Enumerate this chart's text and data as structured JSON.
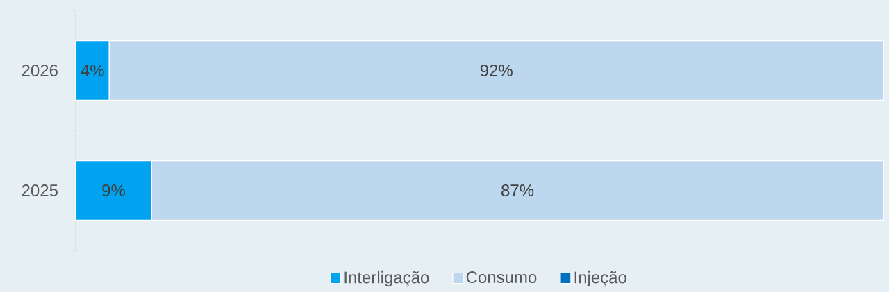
{
  "chart_data": {
    "type": "bar",
    "orientation": "horizontal",
    "stacked": true,
    "categories": [
      "2026",
      "2025"
    ],
    "series": [
      {
        "name": "Interligação",
        "color": "#00a3f0",
        "values": [
          4,
          9
        ],
        "value_labels": [
          "4%",
          "9%"
        ]
      },
      {
        "name": "Consumo",
        "color": "#bdd7ee",
        "values": [
          92,
          87
        ],
        "value_labels": [
          "92%",
          "87%"
        ]
      },
      {
        "name": "Injeção",
        "color": "#0070c0",
        "values": [
          null,
          null
        ]
      }
    ],
    "legend": "bottom",
    "tick_labels": "y"
  }
}
